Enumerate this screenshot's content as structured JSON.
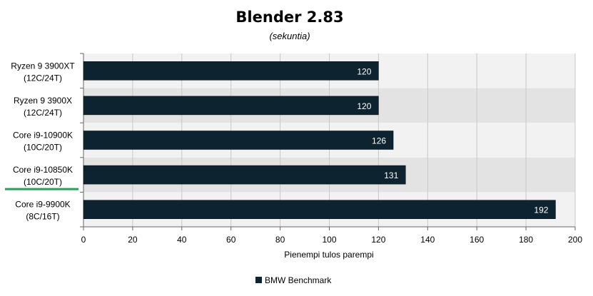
{
  "chart_data": {
    "type": "bar",
    "orientation": "horizontal",
    "title": "Blender 2.83",
    "subtitle": "(sekuntia)",
    "xlabel": "Pienempi tulos parempi",
    "ylabel": "",
    "xlim": [
      0,
      200
    ],
    "xticks": [
      "0",
      "20",
      "40",
      "60",
      "80",
      "100",
      "120",
      "140",
      "160",
      "180",
      "200"
    ],
    "grid": true,
    "legend_position": "bottom",
    "categories": [
      [
        "Ryzen 9 3900XT",
        "(12C/24T)"
      ],
      [
        "Ryzen 9 3900X",
        "(12C/24T)"
      ],
      [
        "Core i9-10900K",
        "(10C/20T)"
      ],
      [
        "Core i9-10850K",
        "(10C/20T)"
      ],
      [
        "Core i9-9900K",
        "(8C/16T)"
      ]
    ],
    "highlighted_category": "Core i9-10850K",
    "series": [
      {
        "name": "BMW Benchmark",
        "values": [
          120,
          120,
          126,
          131,
          192
        ],
        "color": "#0d2330"
      }
    ],
    "colors": {
      "plot_band_light": "#f2f2f2",
      "plot_band_dark": "#e3e3e3",
      "gridline": "#c8c8c8",
      "highlight": "#2a9d5c"
    }
  }
}
